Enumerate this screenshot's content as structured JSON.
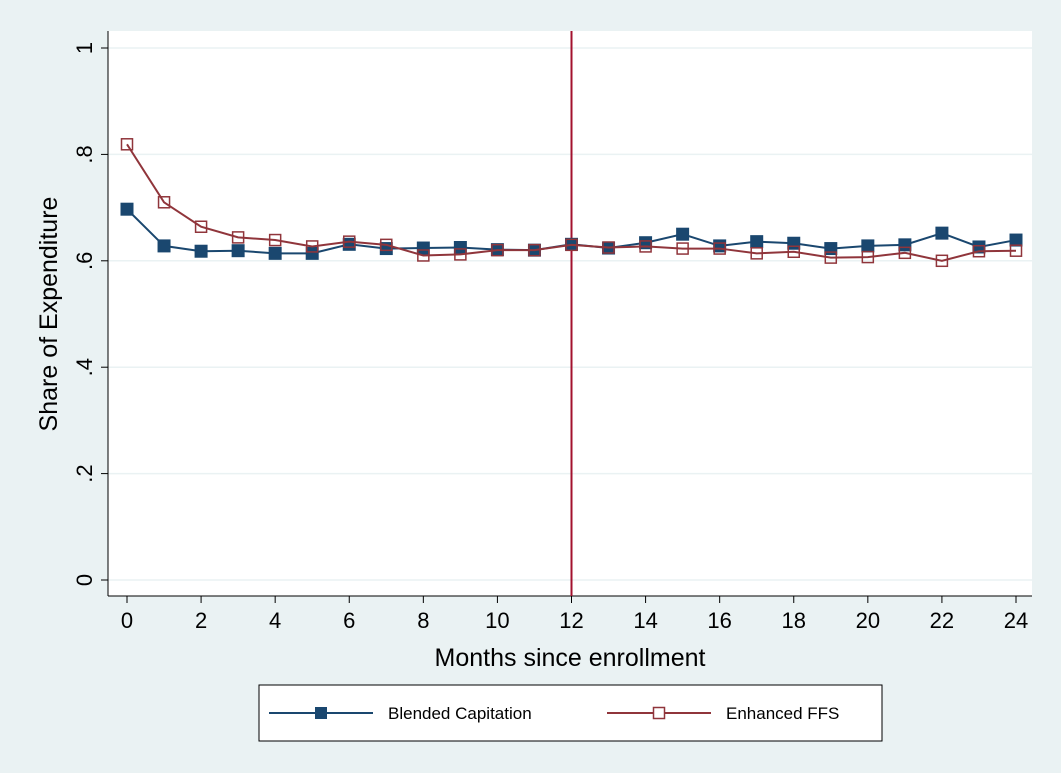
{
  "chart_data": {
    "type": "line",
    "title": "",
    "xlabel": "Months since enrollment",
    "ylabel": "Share of Expenditure",
    "xlim": [
      0,
      24
    ],
    "ylim": [
      0,
      1
    ],
    "x_ticks": [
      0,
      2,
      4,
      6,
      8,
      10,
      12,
      14,
      16,
      18,
      20,
      22,
      24
    ],
    "x_tick_labels": [
      "0",
      "2",
      "4",
      "6",
      "8",
      "10",
      "12",
      "14",
      "16",
      "18",
      "20",
      "22",
      "24"
    ],
    "y_ticks": [
      0,
      0.2,
      0.4,
      0.6,
      0.8,
      1
    ],
    "y_tick_labels": [
      "0",
      ".2",
      ".4",
      ".6",
      ".8",
      "1"
    ],
    "grid": true,
    "legend_position": "bottom",
    "reference_line": {
      "axis": "x",
      "value": 12,
      "color": "#a3112e"
    },
    "x": [
      0,
      1,
      2,
      3,
      4,
      5,
      6,
      7,
      8,
      9,
      10,
      11,
      12,
      13,
      14,
      15,
      16,
      17,
      18,
      19,
      20,
      21,
      22,
      23,
      24
    ],
    "series": [
      {
        "name": "Blended Capitation",
        "marker": "filled-square",
        "color": "#1a476f",
        "values": [
          0.697,
          0.628,
          0.618,
          0.619,
          0.614,
          0.614,
          0.631,
          0.623,
          0.624,
          0.625,
          0.621,
          0.62,
          0.631,
          0.624,
          0.634,
          0.65,
          0.628,
          0.636,
          0.633,
          0.623,
          0.628,
          0.63,
          0.652,
          0.626,
          0.639
        ]
      },
      {
        "name": "Enhanced FFS",
        "marker": "hollow-square",
        "color": "#90353b",
        "values": [
          0.819,
          0.71,
          0.664,
          0.644,
          0.639,
          0.627,
          0.636,
          0.63,
          0.61,
          0.612,
          0.62,
          0.62,
          0.63,
          0.625,
          0.627,
          0.623,
          0.623,
          0.614,
          0.617,
          0.606,
          0.607,
          0.615,
          0.6,
          0.618,
          0.619
        ]
      }
    ]
  },
  "colors": {
    "background": "#eaf2f3",
    "plot_area": "#ffffff",
    "grid": "#eaf2f3"
  }
}
